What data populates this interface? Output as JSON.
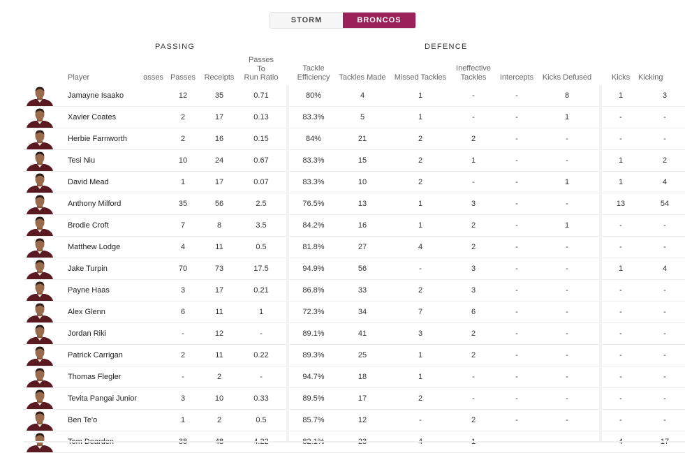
{
  "toggle": {
    "storm": "STORM",
    "broncos": "BRONCOS"
  },
  "groups": {
    "passing": "PASSING",
    "defence": "DEFENCE"
  },
  "headers": {
    "player": "Player",
    "passes_cut": "asses",
    "passes": "Passes",
    "receipts": "Receipts",
    "ptr_1": "Passes",
    "ptr_2": "To",
    "ptr_3": "Run Ratio",
    "te_1": "Tackle",
    "te_2": "Efficiency",
    "tackles_made": "Tackles Made",
    "missed": "Missed Tackles",
    "ineff_1": "Ineffective",
    "ineff_2": "Tackles",
    "intercepts": "Intercepts",
    "kicks_defused": "Kicks Defused",
    "kicks": "Kicks",
    "kicking": "Kicking"
  },
  "colors": {
    "accent": "#9b2259",
    "jersey": "#5a1a22"
  },
  "players": [
    {
      "name": "Jamayne Isaako",
      "passes": "12",
      "receipts": "35",
      "ptr": "0.71",
      "te": "80%",
      "made": "4",
      "missed": "1",
      "ineff": "-",
      "int": "-",
      "defused": "8",
      "kicks": "1",
      "kicking": "3"
    },
    {
      "name": "Xavier Coates",
      "passes": "2",
      "receipts": "17",
      "ptr": "0.13",
      "te": "83.3%",
      "made": "5",
      "missed": "1",
      "ineff": "-",
      "int": "-",
      "defused": "1",
      "kicks": "-",
      "kicking": "-"
    },
    {
      "name": "Herbie Farnworth",
      "passes": "2",
      "receipts": "16",
      "ptr": "0.15",
      "te": "84%",
      "made": "21",
      "missed": "2",
      "ineff": "2",
      "int": "-",
      "defused": "-",
      "kicks": "-",
      "kicking": "-"
    },
    {
      "name": "Tesi Niu",
      "passes": "10",
      "receipts": "24",
      "ptr": "0.67",
      "te": "83.3%",
      "made": "15",
      "missed": "2",
      "ineff": "1",
      "int": "-",
      "defused": "-",
      "kicks": "1",
      "kicking": "2"
    },
    {
      "name": "David Mead",
      "passes": "1",
      "receipts": "17",
      "ptr": "0.07",
      "te": "83.3%",
      "made": "10",
      "missed": "2",
      "ineff": "-",
      "int": "-",
      "defused": "1",
      "kicks": "1",
      "kicking": "4"
    },
    {
      "name": "Anthony Milford",
      "passes": "35",
      "receipts": "56",
      "ptr": "2.5",
      "te": "76.5%",
      "made": "13",
      "missed": "1",
      "ineff": "3",
      "int": "-",
      "defused": "-",
      "kicks": "13",
      "kicking": "54"
    },
    {
      "name": "Brodie Croft",
      "passes": "7",
      "receipts": "8",
      "ptr": "3.5",
      "te": "84.2%",
      "made": "16",
      "missed": "1",
      "ineff": "2",
      "int": "-",
      "defused": "1",
      "kicks": "-",
      "kicking": "-"
    },
    {
      "name": "Matthew Lodge",
      "passes": "4",
      "receipts": "11",
      "ptr": "0.5",
      "te": "81.8%",
      "made": "27",
      "missed": "4",
      "ineff": "2",
      "int": "-",
      "defused": "-",
      "kicks": "-",
      "kicking": "-"
    },
    {
      "name": "Jake Turpin",
      "passes": "70",
      "receipts": "73",
      "ptr": "17.5",
      "te": "94.9%",
      "made": "56",
      "missed": "-",
      "ineff": "3",
      "int": "-",
      "defused": "-",
      "kicks": "1",
      "kicking": "4"
    },
    {
      "name": "Payne Haas",
      "passes": "3",
      "receipts": "17",
      "ptr": "0.21",
      "te": "86.8%",
      "made": "33",
      "missed": "2",
      "ineff": "3",
      "int": "-",
      "defused": "-",
      "kicks": "-",
      "kicking": "-"
    },
    {
      "name": "Alex Glenn",
      "passes": "6",
      "receipts": "11",
      "ptr": "1",
      "te": "72.3%",
      "made": "34",
      "missed": "7",
      "ineff": "6",
      "int": "-",
      "defused": "-",
      "kicks": "-",
      "kicking": "-"
    },
    {
      "name": "Jordan Riki",
      "passes": "-",
      "receipts": "12",
      "ptr": "-",
      "te": "89.1%",
      "made": "41",
      "missed": "3",
      "ineff": "2",
      "int": "-",
      "defused": "-",
      "kicks": "-",
      "kicking": "-"
    },
    {
      "name": "Patrick Carrigan",
      "passes": "2",
      "receipts": "11",
      "ptr": "0.22",
      "te": "89.3%",
      "made": "25",
      "missed": "1",
      "ineff": "2",
      "int": "-",
      "defused": "-",
      "kicks": "-",
      "kicking": "-"
    },
    {
      "name": "Thomas Flegler",
      "passes": "-",
      "receipts": "2",
      "ptr": "-",
      "te": "94.7%",
      "made": "18",
      "missed": "1",
      "ineff": "-",
      "int": "-",
      "defused": "-",
      "kicks": "-",
      "kicking": "-"
    },
    {
      "name": "Tevita Pangai Junior",
      "passes": "3",
      "receipts": "10",
      "ptr": "0.33",
      "te": "89.5%",
      "made": "17",
      "missed": "2",
      "ineff": "-",
      "int": "-",
      "defused": "-",
      "kicks": "-",
      "kicking": "-"
    },
    {
      "name": "Ben Te'o",
      "passes": "1",
      "receipts": "2",
      "ptr": "0.5",
      "te": "85.7%",
      "made": "12",
      "missed": "-",
      "ineff": "2",
      "int": "-",
      "defused": "-",
      "kicks": "-",
      "kicking": "-"
    },
    {
      "name": "Tom Dearden",
      "passes": "38",
      "receipts": "48",
      "ptr": "4.22",
      "te": "82.1%",
      "made": "23",
      "missed": "4",
      "ineff": "1",
      "int": "-",
      "defused": "-",
      "kicks": "4",
      "kicking": "17"
    }
  ]
}
